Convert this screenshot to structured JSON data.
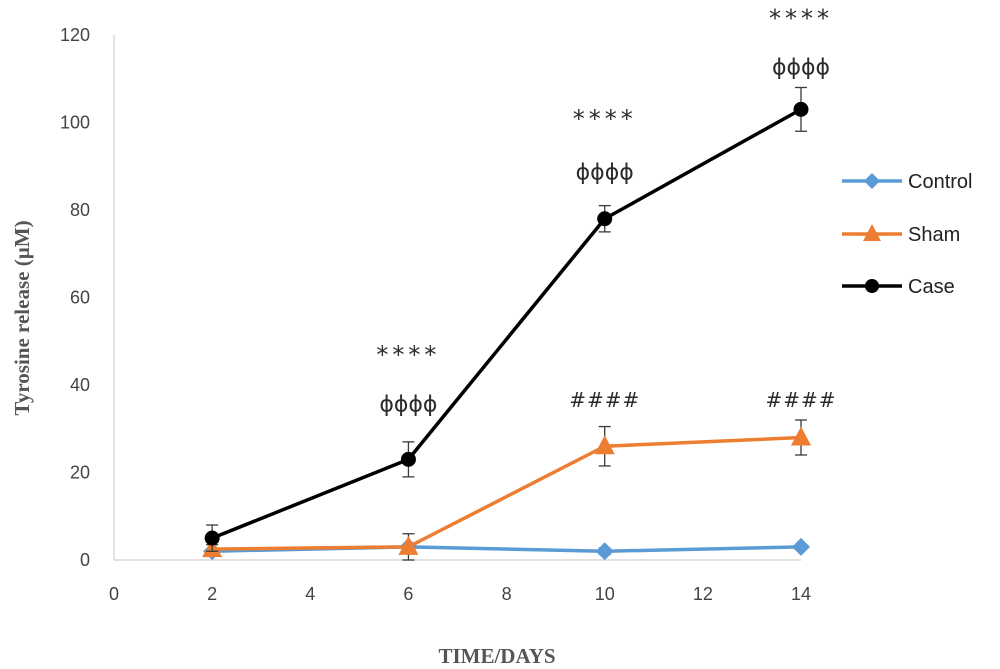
{
  "chart_data": {
    "type": "line",
    "xlabel": "TIME/DAYS",
    "ylabel": "Tyrosine release (µM)",
    "xlim": [
      0,
      14
    ],
    "ylim": [
      0,
      120
    ],
    "xticks": [
      0,
      2,
      4,
      6,
      8,
      10,
      12,
      14
    ],
    "yticks": [
      0,
      20,
      40,
      60,
      80,
      100,
      120
    ],
    "grid": false,
    "legend_position": "right",
    "x": [
      2,
      6,
      10,
      14
    ],
    "series": [
      {
        "name": "Control",
        "marker": "diamond",
        "color": "#5b9bd5",
        "values": [
          2,
          3,
          2,
          3
        ],
        "errors": [
          0.5,
          0.5,
          0.8,
          0.6
        ]
      },
      {
        "name": "Sham",
        "marker": "triangle",
        "color": "#ed7d31",
        "values": [
          2.5,
          3,
          26,
          28
        ],
        "errors": [
          1,
          3,
          4.5,
          4
        ]
      },
      {
        "name": "Case",
        "marker": "circle",
        "color": "#000000",
        "values": [
          5,
          23,
          78,
          103
        ],
        "errors": [
          3,
          4,
          3,
          5
        ]
      }
    ],
    "annotations": [
      {
        "x": 6,
        "y": 45,
        "text": "****"
      },
      {
        "x": 6,
        "y": 34,
        "text": "ɸɸɸɸ"
      },
      {
        "x": 10,
        "y": 99,
        "text": "****"
      },
      {
        "x": 10,
        "y": 87,
        "text": "ɸɸɸɸ"
      },
      {
        "x": 14,
        "y": 122,
        "text": "****"
      },
      {
        "x": 14,
        "y": 111,
        "text": "ɸɸɸɸ"
      },
      {
        "x": 10,
        "y": 35,
        "text": "####"
      },
      {
        "x": 14,
        "y": 35,
        "text": "####"
      }
    ]
  }
}
